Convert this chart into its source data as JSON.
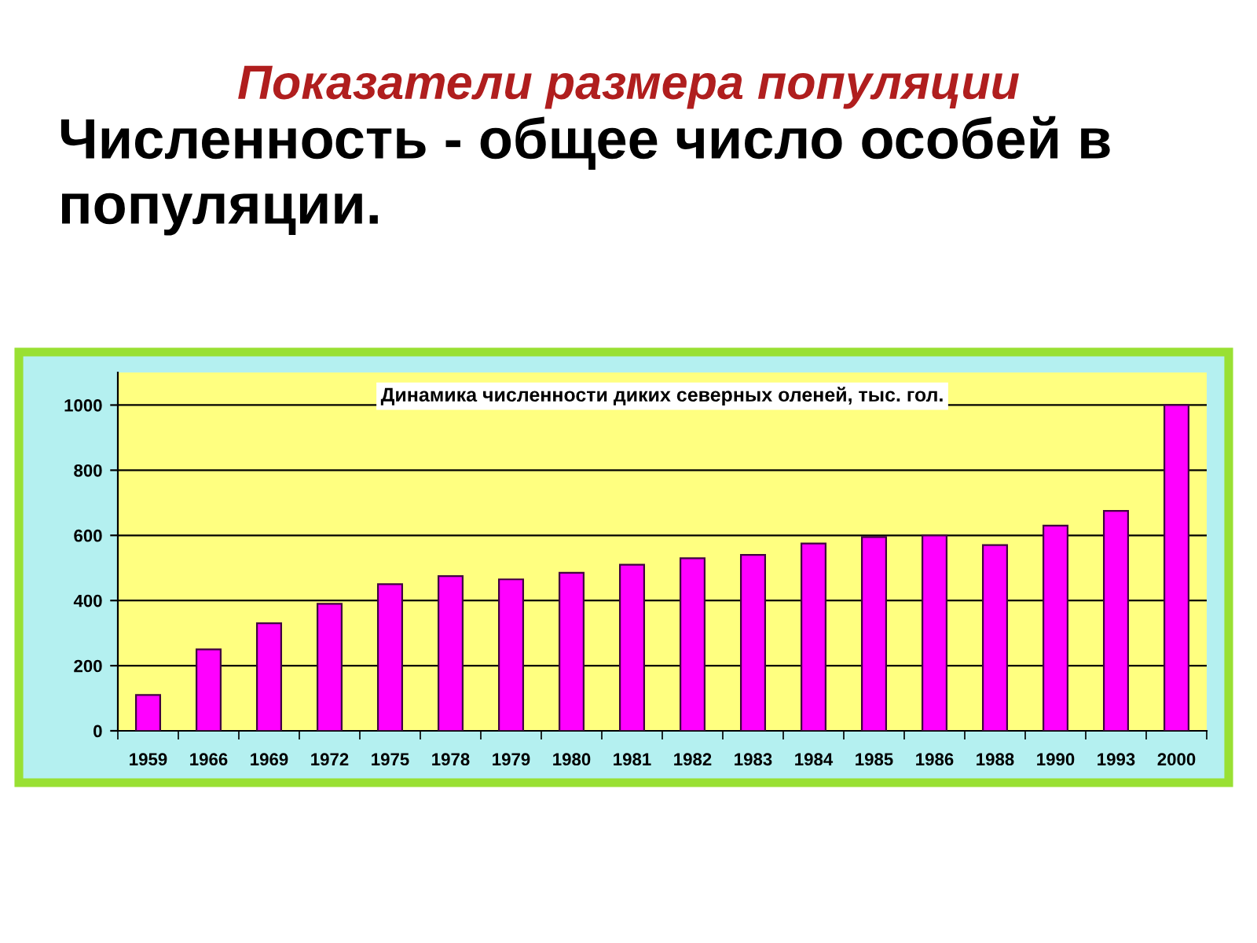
{
  "chart_data": {
    "type": "bar",
    "title": "Показатели размера популяции",
    "subtitle": "Численность - общее число особей в популяции.",
    "annotations": [
      "Динамика численности диких северных оленей, тыс. гол."
    ],
    "categories": [
      "1959",
      "1966",
      "1969",
      "1972",
      "1975",
      "1978",
      "1979",
      "1980",
      "1981",
      "1982",
      "1983",
      "1984",
      "1985",
      "1986",
      "1988",
      "1990",
      "1993",
      "2000"
    ],
    "values": [
      110,
      250,
      330,
      390,
      450,
      475,
      465,
      485,
      510,
      530,
      540,
      575,
      595,
      600,
      570,
      630,
      675,
      1000
    ],
    "color": "#ff00ff",
    "ylim": [
      0,
      1100
    ],
    "yticks": [
      0,
      200,
      400,
      600,
      800,
      1000
    ],
    "grid": "y"
  }
}
